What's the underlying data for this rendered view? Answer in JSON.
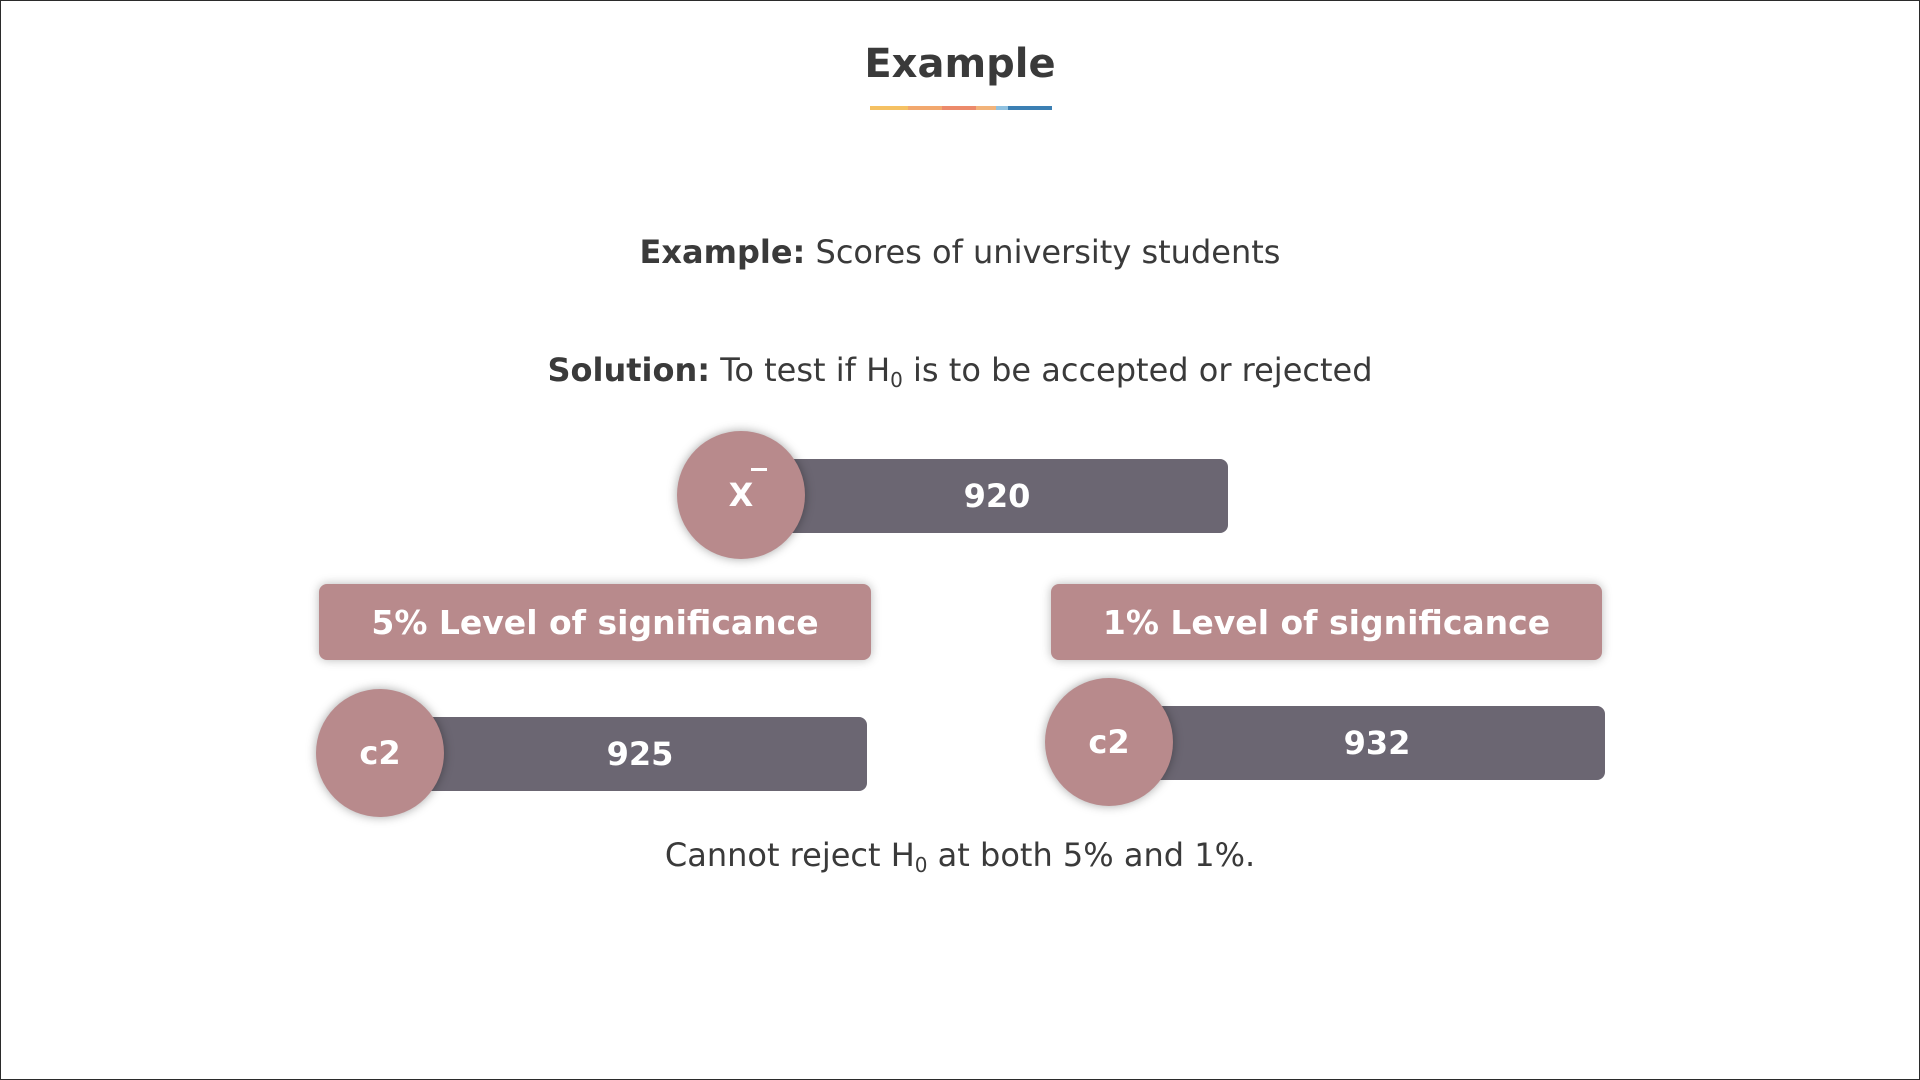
{
  "title": "Example",
  "accent_colors": [
    "#f5c163",
    "#f2a86e",
    "#ec8a6b",
    "#f2b37a",
    "#8fc1e0",
    "#3b7fb3"
  ],
  "example": {
    "label": "Example:",
    "text": "Scores of university students"
  },
  "solution": {
    "label": "Solution:",
    "text_before": "To test if H",
    "subscript": "0",
    "text_after": " is to be accepted or rejected"
  },
  "sample_mean": {
    "symbol": "X",
    "value": "920"
  },
  "levels": [
    {
      "label": "5% Level of significance",
      "symbol": "c2",
      "value": "925"
    },
    {
      "label": "1% Level of significance",
      "symbol": "c2",
      "value": "932"
    }
  ],
  "conclusion": {
    "text_before": "Cannot reject H",
    "subscript": "0",
    "text_after": " at both 5% and 1%."
  }
}
